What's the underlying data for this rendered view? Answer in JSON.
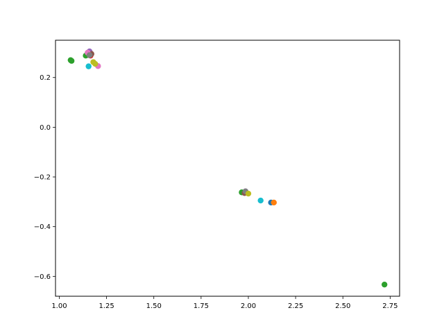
{
  "chart_data": {
    "type": "scatter",
    "title": "",
    "xlabel": "",
    "ylabel": "",
    "xlim": [
      0.98,
      2.8
    ],
    "ylim": [
      -0.68,
      0.35
    ],
    "grid": false,
    "x_ticks": [
      1.0,
      1.25,
      1.5,
      1.75,
      2.0,
      2.25,
      2.5,
      2.75
    ],
    "x_tick_labels": [
      "1.00",
      "1.25",
      "1.50",
      "1.75",
      "2.00",
      "2.25",
      "2.50",
      "2.75"
    ],
    "y_ticks": [
      0.2,
      0.0,
      -0.2,
      -0.4,
      -0.6
    ],
    "y_tick_labels": [
      "0.2",
      "0.0",
      "−0.2",
      "−0.4",
      "−0.6"
    ],
    "series": [
      {
        "color": "#1f77b4",
        "points": [
          [
            1.145,
            0.29
          ],
          [
            2.12,
            -0.303
          ]
        ]
      },
      {
        "color": "#ff7f0e",
        "points": [
          [
            1.16,
            0.29
          ],
          [
            2.135,
            -0.303
          ]
        ]
      },
      {
        "color": "#2ca02c",
        "points": [
          [
            1.06,
            0.27
          ],
          [
            1.065,
            0.267
          ],
          [
            1.14,
            0.288
          ],
          [
            1.965,
            -0.262
          ],
          [
            2.72,
            -0.633
          ]
        ]
      },
      {
        "color": "#d62728",
        "points": [
          [
            1.165,
            0.298
          ],
          [
            1.165,
            0.288
          ]
        ]
      },
      {
        "color": "#9467bd",
        "points": [
          [
            1.16,
            0.305
          ],
          [
            1.985,
            -0.258
          ]
        ]
      },
      {
        "color": "#8c564b",
        "points": [
          [
            1.17,
            0.295
          ],
          [
            1.98,
            -0.265
          ]
        ]
      },
      {
        "color": "#e377c2",
        "points": [
          [
            1.15,
            0.3
          ],
          [
            1.205,
            0.246
          ]
        ]
      },
      {
        "color": "#7f7f7f",
        "points": [
          [
            1.16,
            0.29
          ],
          [
            1.985,
            -0.258
          ]
        ]
      },
      {
        "color": "#bcbd22",
        "points": [
          [
            1.18,
            0.262
          ],
          [
            1.19,
            0.255
          ],
          [
            2.0,
            -0.267
          ]
        ]
      },
      {
        "color": "#17becf",
        "points": [
          [
            1.155,
            0.245
          ],
          [
            2.065,
            -0.295
          ]
        ]
      }
    ]
  }
}
